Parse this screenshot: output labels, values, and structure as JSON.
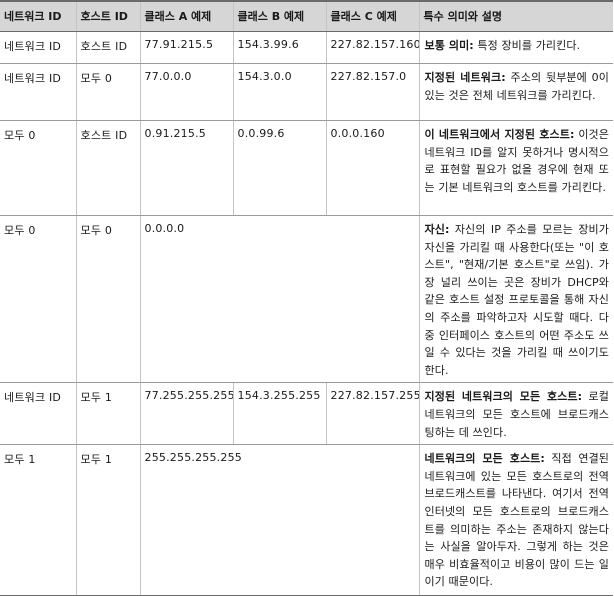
{
  "headers": [
    "네트워크 ID",
    "호스트 ID",
    "클래스 A 예제",
    "클래스 B 예제",
    "클래스 C 예제",
    "특수 의미와 설명"
  ],
  "rows": [
    {
      "network_id": "네트워크 ID",
      "host_id": "호스트 ID",
      "class_a": "77.91.215.5",
      "class_b": "154.3.99.6",
      "class_c": "227.82.157.160",
      "desc_title": "보통 의미:",
      "desc_text": " 특정 장비를 가리킨다."
    },
    {
      "network_id": "네트워크 ID",
      "host_id": "모두 0",
      "class_a": "77.0.0.0",
      "class_b": "154.3.0.0",
      "class_c": "227.82.157.0",
      "desc_title": "지정된 네트워크:",
      "desc_text": " 주소의 뒷부분에 0이 있는 것은 전체 네트워크를 가리킨다."
    },
    {
      "network_id": "모두 0",
      "host_id": "호스트 ID",
      "class_a": "0.91.215.5",
      "class_b": "0.0.99.6",
      "class_c": "0.0.0.160",
      "desc_title": "이 네트워크에서 지정된 호스트:",
      "desc_text": " 이것은 네트워크 ID를 알지 못하거나 명시적으로 표현할 필요가 없을 경우에 현재 또는 기본 네트워크의 호스트를 가리킨다."
    },
    {
      "network_id": "모두 0",
      "host_id": "모두 0",
      "class_abc": "0.0.0.0",
      "desc_title": "자신:",
      "desc_text": " 자신의 IP 주소를 모르는 장비가 자신을 가리킬 때 사용한다(또는 \"이 호스트\", \"현재/기본 호스트\"로 쓰임). 가장 널리 쓰이는 곳은 장비가 DHCP와 같은 호스트 설정 프로토콜을 통해 자신의 주소를 파악하고자 시도할 때다. 다중 인터페이스 호스트의 어떤 주소도 쓰일 수 있다는 것을 가리킬 때 쓰이기도 한다."
    },
    {
      "network_id": "네트워크 ID",
      "host_id": "모두 1",
      "class_a": "77.255.255.255",
      "class_b": "154.3.255.255",
      "class_c": "227.82.157.255",
      "desc_title": "지정된 네트워크의 모든 호스트:",
      "desc_text": " 로컬 네트워크의 모든 호스트에 브로드캐스팅하는 데 쓰인다."
    },
    {
      "network_id": "모두 1",
      "host_id": "모두 1",
      "class_abc": "255.255.255.255",
      "desc_title": "네트워크의 모든 호스트:",
      "desc_text": " 직접 연결된 네트워크에 있는 모든 호스트로의 전역 브로드캐스트를 나타낸다. 여기서 전역 인터넷의 모든 호스트로의 브로드캐스트를 의미하는 주소는 존재하지 않는다는 사실을 알아두자. 그렇게 하는 것은 매우 비효율적이고 비용이 많이 드는 일이기 때문이다."
    }
  ]
}
